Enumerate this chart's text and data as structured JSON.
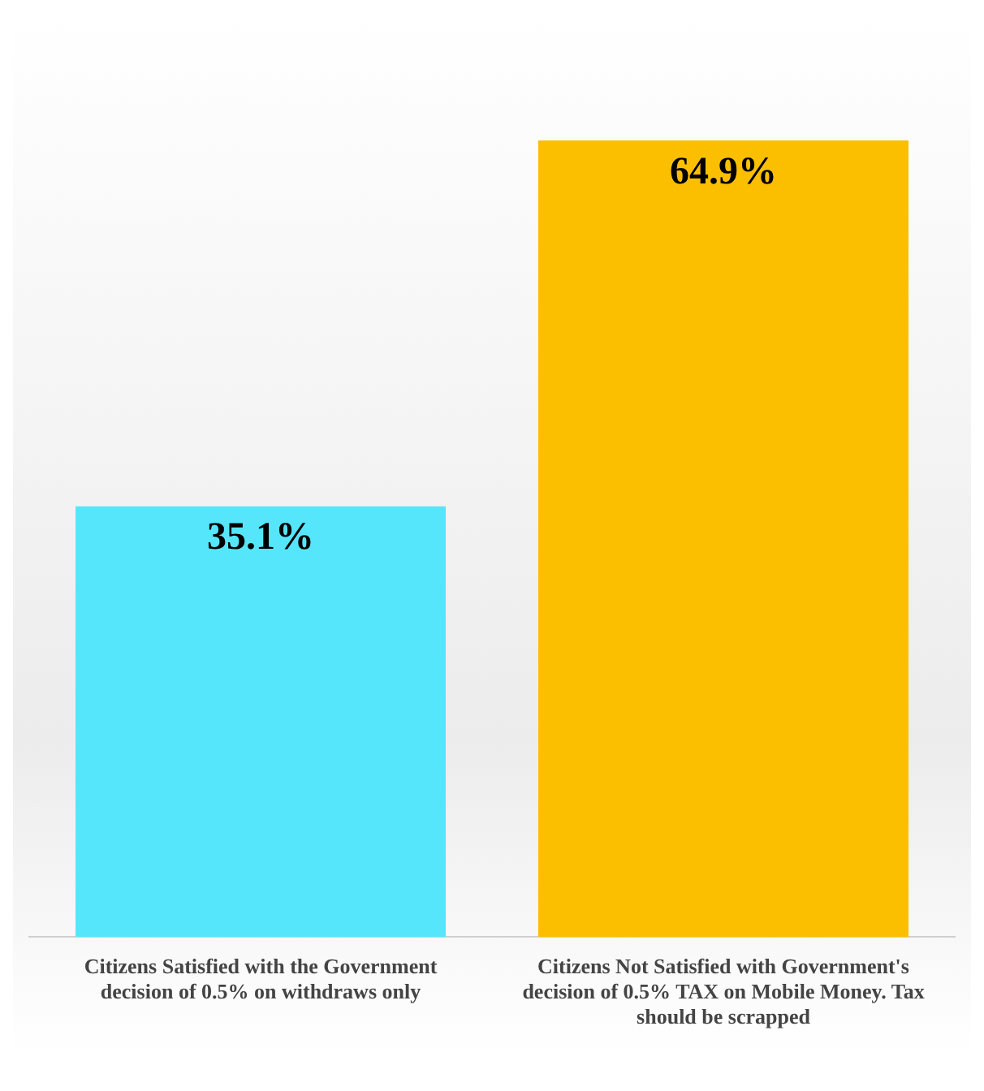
{
  "chart_data": {
    "type": "bar",
    "categories": [
      "Citizens Satisfied with the Government decision of 0.5% on withdraws only",
      "Citizens Not Satisfied with Government's decision of 0.5% TAX on Mobile Money. Tax should be scrapped"
    ],
    "values": [
      35.1,
      64.9
    ],
    "colors": [
      "#55e6fb",
      "#fcbf00"
    ],
    "value_labels": [
      "35.1%",
      "64.9%"
    ]
  }
}
